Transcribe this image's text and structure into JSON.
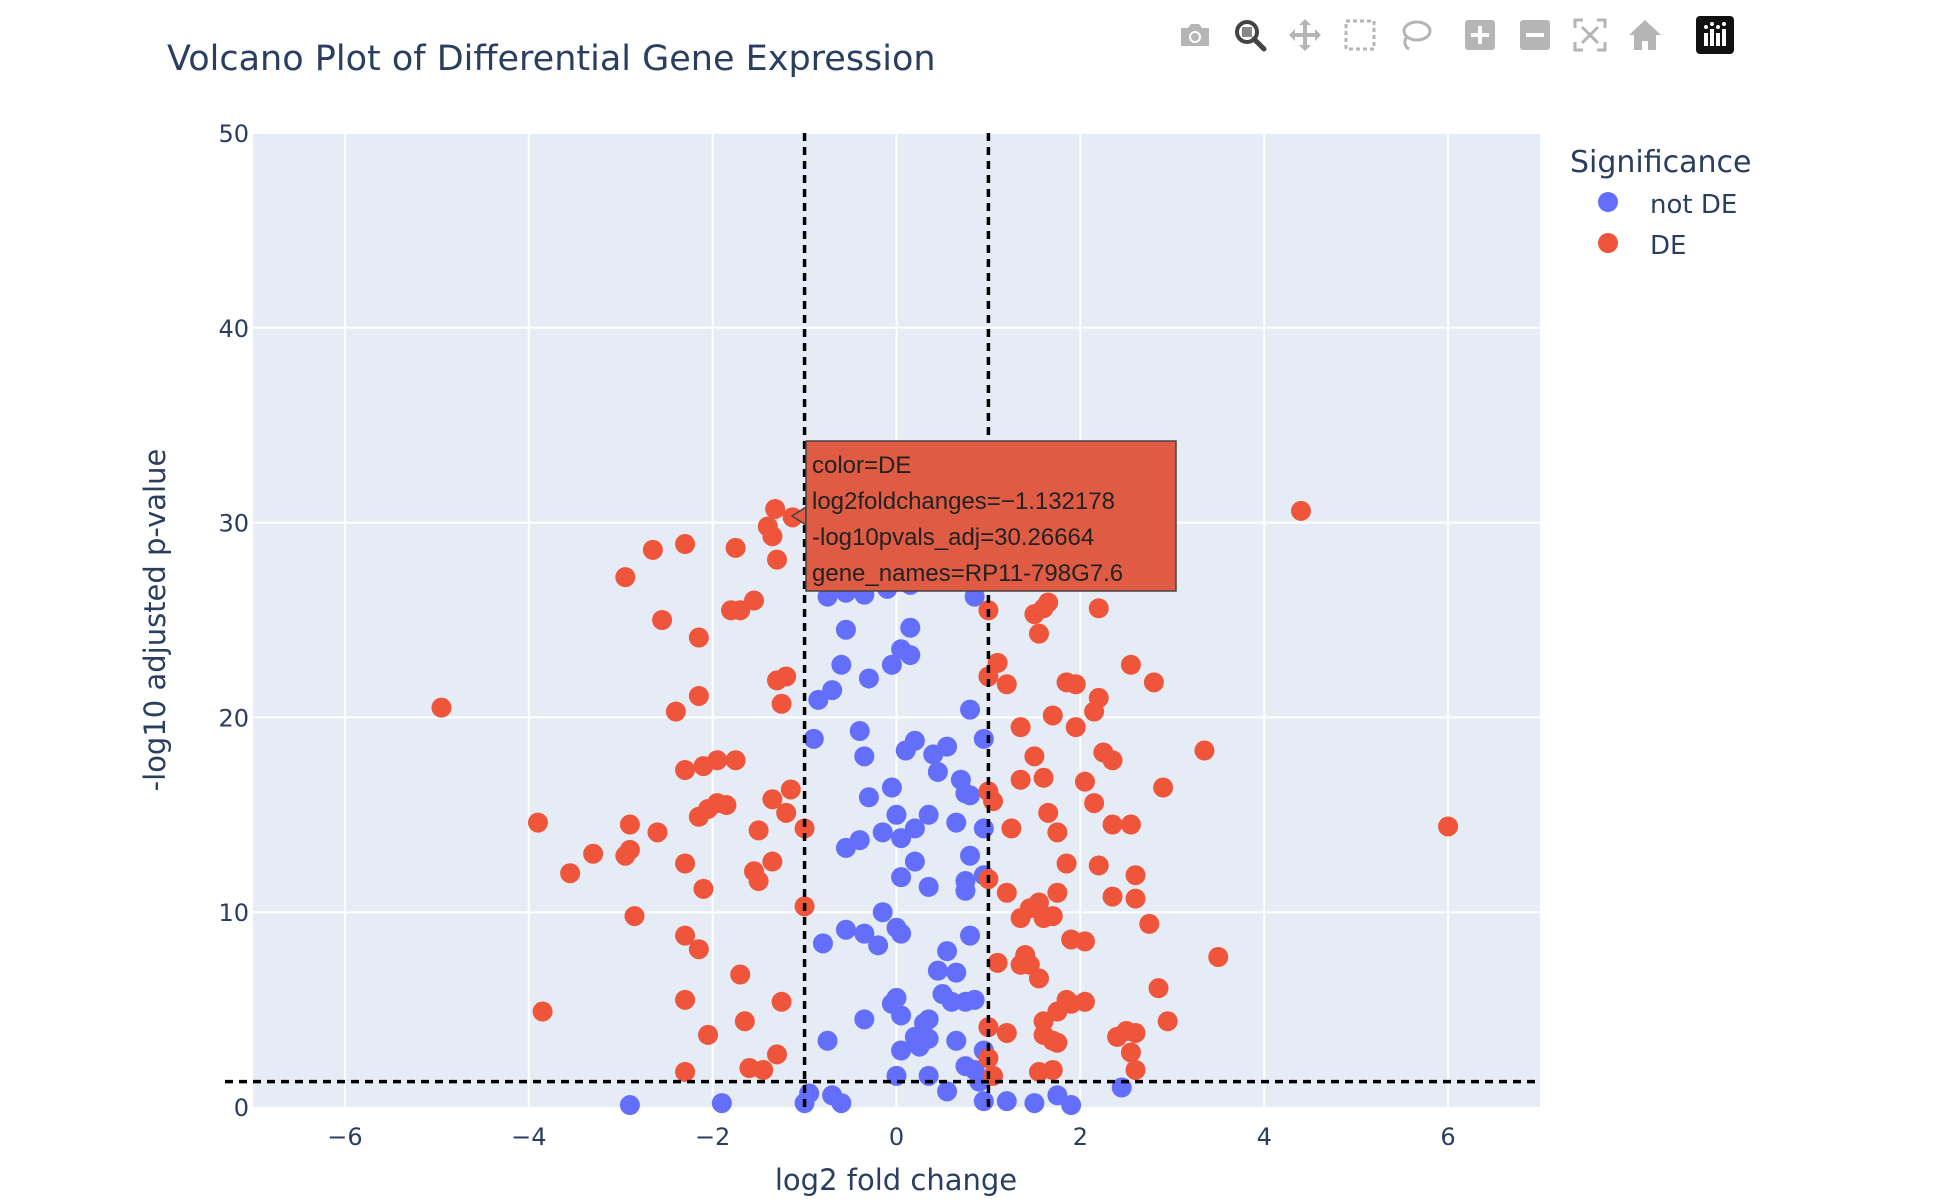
{
  "chart_data": {
    "type": "scatter",
    "title": "Volcano Plot of Differential Gene Expression",
    "xlabel": "log2 fold change",
    "ylabel": "-log10 adjusted p-value",
    "xlim": [
      -7,
      7
    ],
    "ylim": [
      0,
      50
    ],
    "x_ticks": [
      -6,
      -4,
      -2,
      0,
      2,
      4,
      6
    ],
    "x_tick_labels": [
      "−6",
      "−4",
      "−2",
      "0",
      "2",
      "4",
      "6"
    ],
    "y_ticks": [
      0,
      10,
      20,
      30,
      40,
      50
    ],
    "y_tick_labels": [
      "0",
      "10",
      "20",
      "30",
      "40",
      "50"
    ],
    "grid": true,
    "legend_title": "Significance",
    "legend_position": "top-right, outside plot",
    "threshold_lines": {
      "x": [
        -1,
        1
      ],
      "y": 1.3
    },
    "series": [
      {
        "name": "not DE",
        "color": "#636efa",
        "points": [
          [
            -0.75,
            26.2
          ],
          [
            -0.55,
            26.4
          ],
          [
            -0.35,
            26.3
          ],
          [
            -0.1,
            26.6
          ],
          [
            0.15,
            26.8
          ],
          [
            0.85,
            26.2
          ],
          [
            -0.55,
            24.5
          ],
          [
            0.15,
            24.6
          ],
          [
            0.05,
            23.5
          ],
          [
            0.15,
            23.2
          ],
          [
            -0.05,
            22.7
          ],
          [
            -0.6,
            22.7
          ],
          [
            -0.3,
            22.0
          ],
          [
            -0.7,
            21.4
          ],
          [
            -0.85,
            20.9
          ],
          [
            0.8,
            20.4
          ],
          [
            -0.9,
            18.9
          ],
          [
            -0.4,
            19.3
          ],
          [
            -0.35,
            18.0
          ],
          [
            0.1,
            18.3
          ],
          [
            0.2,
            18.8
          ],
          [
            0.4,
            18.1
          ],
          [
            0.55,
            18.5
          ],
          [
            0.95,
            18.9
          ],
          [
            0.45,
            17.2
          ],
          [
            0.7,
            16.8
          ],
          [
            0.75,
            16.1
          ],
          [
            -0.3,
            15.9
          ],
          [
            -0.05,
            16.4
          ],
          [
            0.8,
            16.0
          ],
          [
            0.0,
            15.0
          ],
          [
            0.35,
            15.0
          ],
          [
            0.65,
            14.6
          ],
          [
            -0.15,
            14.1
          ],
          [
            -0.4,
            13.7
          ],
          [
            0.05,
            13.8
          ],
          [
            -0.55,
            13.3
          ],
          [
            0.95,
            14.3
          ],
          [
            0.2,
            14.3
          ],
          [
            0.8,
            12.9
          ],
          [
            0.2,
            12.6
          ],
          [
            0.05,
            11.8
          ],
          [
            0.35,
            11.3
          ],
          [
            0.75,
            11.6
          ],
          [
            0.95,
            11.9
          ],
          [
            0.75,
            11.1
          ],
          [
            -0.15,
            10.0
          ],
          [
            -0.55,
            9.1
          ],
          [
            -0.35,
            8.9
          ],
          [
            -0.2,
            8.3
          ],
          [
            0.0,
            9.2
          ],
          [
            0.05,
            8.9
          ],
          [
            -0.8,
            8.4
          ],
          [
            0.8,
            8.8
          ],
          [
            0.55,
            8.0
          ],
          [
            0.45,
            7.0
          ],
          [
            0.65,
            6.9
          ],
          [
            0.5,
            5.8
          ],
          [
            0.75,
            5.4
          ],
          [
            0.6,
            5.4
          ],
          [
            0.85,
            5.5
          ],
          [
            -0.05,
            5.3
          ],
          [
            0.0,
            5.6
          ],
          [
            0.05,
            4.7
          ],
          [
            0.3,
            4.3
          ],
          [
            0.35,
            4.5
          ],
          [
            -0.35,
            4.5
          ],
          [
            0.2,
            3.6
          ],
          [
            0.35,
            3.5
          ],
          [
            0.65,
            3.4
          ],
          [
            0.05,
            2.9
          ],
          [
            0.95,
            2.9
          ],
          [
            0.25,
            3.1
          ],
          [
            -0.75,
            3.4
          ],
          [
            0.75,
            2.1
          ],
          [
            0.85,
            1.9
          ],
          [
            0.0,
            1.6
          ],
          [
            0.35,
            1.6
          ],
          [
            0.9,
            1.3
          ],
          [
            0.55,
            0.8
          ],
          [
            -0.95,
            0.7
          ],
          [
            -0.7,
            0.6
          ],
          [
            -0.6,
            0.2
          ],
          [
            -1.0,
            0.2
          ],
          [
            0.95,
            0.3
          ],
          [
            -2.9,
            0.1
          ],
          [
            -1.9,
            0.2
          ],
          [
            1.2,
            0.3
          ],
          [
            1.5,
            0.2
          ],
          [
            1.75,
            0.6
          ],
          [
            1.9,
            0.1
          ],
          [
            2.45,
            1.0
          ]
        ]
      },
      {
        "name": "DE",
        "color": "#ef553b",
        "points": [
          [
            -1.32,
            30.7
          ],
          [
            -1.13,
            30.27
          ],
          [
            -1.4,
            29.8
          ],
          [
            -1.35,
            29.3
          ],
          [
            -1.3,
            28.1
          ],
          [
            -2.95,
            27.2
          ],
          [
            -2.3,
            28.9
          ],
          [
            -2.65,
            28.6
          ],
          [
            -1.75,
            28.7
          ],
          [
            -1.55,
            26.0
          ],
          [
            -1.7,
            25.5
          ],
          [
            -1.8,
            25.5
          ],
          [
            -2.55,
            25.0
          ],
          [
            -2.15,
            24.1
          ],
          [
            -1.3,
            21.9
          ],
          [
            -1.2,
            22.1
          ],
          [
            -1.25,
            20.7
          ],
          [
            -2.15,
            21.1
          ],
          [
            -2.4,
            20.3
          ],
          [
            -4.95,
            20.5
          ],
          [
            -1.95,
            17.8
          ],
          [
            -1.75,
            17.8
          ],
          [
            -2.1,
            17.5
          ],
          [
            -2.3,
            17.3
          ],
          [
            -1.15,
            16.3
          ],
          [
            -1.35,
            15.8
          ],
          [
            -1.95,
            15.6
          ],
          [
            -1.85,
            15.5
          ],
          [
            -2.05,
            15.3
          ],
          [
            -2.15,
            14.9
          ],
          [
            -1.2,
            15.1
          ],
          [
            -1.0,
            14.3
          ],
          [
            -1.5,
            14.2
          ],
          [
            -3.9,
            14.6
          ],
          [
            -2.9,
            14.5
          ],
          [
            -2.6,
            14.1
          ],
          [
            -3.3,
            13.0
          ],
          [
            -2.9,
            13.2
          ],
          [
            -2.95,
            12.9
          ],
          [
            -1.35,
            12.6
          ],
          [
            -2.3,
            12.5
          ],
          [
            -3.55,
            12.0
          ],
          [
            -1.55,
            12.1
          ],
          [
            -1.5,
            11.6
          ],
          [
            -2.1,
            11.2
          ],
          [
            -1.0,
            10.3
          ],
          [
            -2.85,
            9.8
          ],
          [
            -2.3,
            8.8
          ],
          [
            -2.15,
            8.1
          ],
          [
            -1.7,
            6.8
          ],
          [
            -2.3,
            5.5
          ],
          [
            -1.25,
            5.4
          ],
          [
            -3.85,
            4.9
          ],
          [
            -1.65,
            4.4
          ],
          [
            -2.05,
            3.7
          ],
          [
            -1.3,
            2.7
          ],
          [
            -1.6,
            2.0
          ],
          [
            -1.45,
            1.9
          ],
          [
            -2.3,
            1.8
          ],
          [
            1.0,
            25.5
          ],
          [
            1.5,
            25.3
          ],
          [
            1.6,
            25.6
          ],
          [
            1.65,
            25.9
          ],
          [
            1.55,
            24.3
          ],
          [
            2.2,
            25.6
          ],
          [
            1.1,
            22.8
          ],
          [
            1.0,
            22.1
          ],
          [
            1.2,
            21.7
          ],
          [
            1.85,
            21.8
          ],
          [
            1.95,
            21.7
          ],
          [
            2.55,
            22.7
          ],
          [
            2.8,
            21.8
          ],
          [
            2.2,
            21.0
          ],
          [
            2.15,
            20.3
          ],
          [
            1.7,
            20.1
          ],
          [
            1.35,
            19.5
          ],
          [
            1.95,
            19.5
          ],
          [
            2.25,
            18.2
          ],
          [
            2.35,
            17.8
          ],
          [
            1.5,
            18.0
          ],
          [
            3.35,
            18.3
          ],
          [
            1.35,
            16.8
          ],
          [
            1.6,
            16.9
          ],
          [
            2.05,
            16.7
          ],
          [
            1.0,
            16.2
          ],
          [
            1.05,
            15.7
          ],
          [
            2.15,
            15.6
          ],
          [
            2.9,
            16.4
          ],
          [
            1.65,
            15.1
          ],
          [
            1.75,
            14.1
          ],
          [
            1.25,
            14.3
          ],
          [
            2.35,
            14.5
          ],
          [
            2.55,
            14.5
          ],
          [
            1.85,
            12.5
          ],
          [
            2.2,
            12.4
          ],
          [
            2.6,
            11.9
          ],
          [
            1.0,
            11.7
          ],
          [
            1.2,
            11.0
          ],
          [
            1.75,
            11.0
          ],
          [
            2.35,
            10.8
          ],
          [
            2.6,
            10.7
          ],
          [
            1.55,
            10.5
          ],
          [
            1.45,
            10.2
          ],
          [
            1.35,
            9.7
          ],
          [
            1.6,
            9.7
          ],
          [
            1.7,
            9.8
          ],
          [
            2.75,
            9.4
          ],
          [
            1.9,
            8.6
          ],
          [
            2.05,
            8.5
          ],
          [
            1.1,
            7.4
          ],
          [
            1.35,
            7.3
          ],
          [
            1.45,
            7.3
          ],
          [
            1.4,
            7.8
          ],
          [
            3.5,
            7.7
          ],
          [
            1.55,
            6.6
          ],
          [
            2.85,
            6.1
          ],
          [
            1.85,
            5.5
          ],
          [
            1.9,
            5.3
          ],
          [
            2.05,
            5.4
          ],
          [
            1.75,
            4.9
          ],
          [
            1.6,
            4.4
          ],
          [
            1.0,
            4.1
          ],
          [
            1.2,
            3.8
          ],
          [
            1.6,
            3.7
          ],
          [
            1.7,
            3.4
          ],
          [
            2.4,
            3.6
          ],
          [
            2.5,
            3.9
          ],
          [
            2.6,
            3.8
          ],
          [
            2.95,
            4.4
          ],
          [
            1.75,
            3.3
          ],
          [
            1.0,
            2.5
          ],
          [
            2.55,
            2.8
          ],
          [
            1.7,
            1.9
          ],
          [
            1.05,
            1.6
          ],
          [
            1.55,
            1.8
          ],
          [
            2.6,
            1.9
          ],
          [
            4.4,
            30.6
          ],
          [
            6.0,
            14.4
          ]
        ]
      }
    ],
    "tooltip": {
      "lines": [
        "color=DE",
        "log2foldchanges=−1.132178",
        "-log10pvals_adj=30.26664",
        "gene_names=RP11-798G7.6"
      ],
      "x": -1.132178,
      "y": 30.26664,
      "color": "#e05b44"
    }
  },
  "modebar": {
    "buttons": [
      {
        "name": "camera-icon",
        "label": "Download plot as a png"
      },
      {
        "name": "zoom-icon",
        "label": "Zoom"
      },
      {
        "name": "pan-icon",
        "label": "Pan"
      },
      {
        "name": "box-select-icon",
        "label": "Box Select"
      },
      {
        "name": "lasso-select-icon",
        "label": "Lasso Select"
      },
      {
        "name": "zoom-in-icon",
        "label": "Zoom in"
      },
      {
        "name": "zoom-out-icon",
        "label": "Zoom out"
      },
      {
        "name": "autoscale-icon",
        "label": "Autoscale"
      },
      {
        "name": "reset-axes-icon",
        "label": "Reset axes"
      },
      {
        "name": "plotly-logo-icon",
        "label": "Produced with Plotly"
      }
    ],
    "active": "zoom-icon"
  }
}
